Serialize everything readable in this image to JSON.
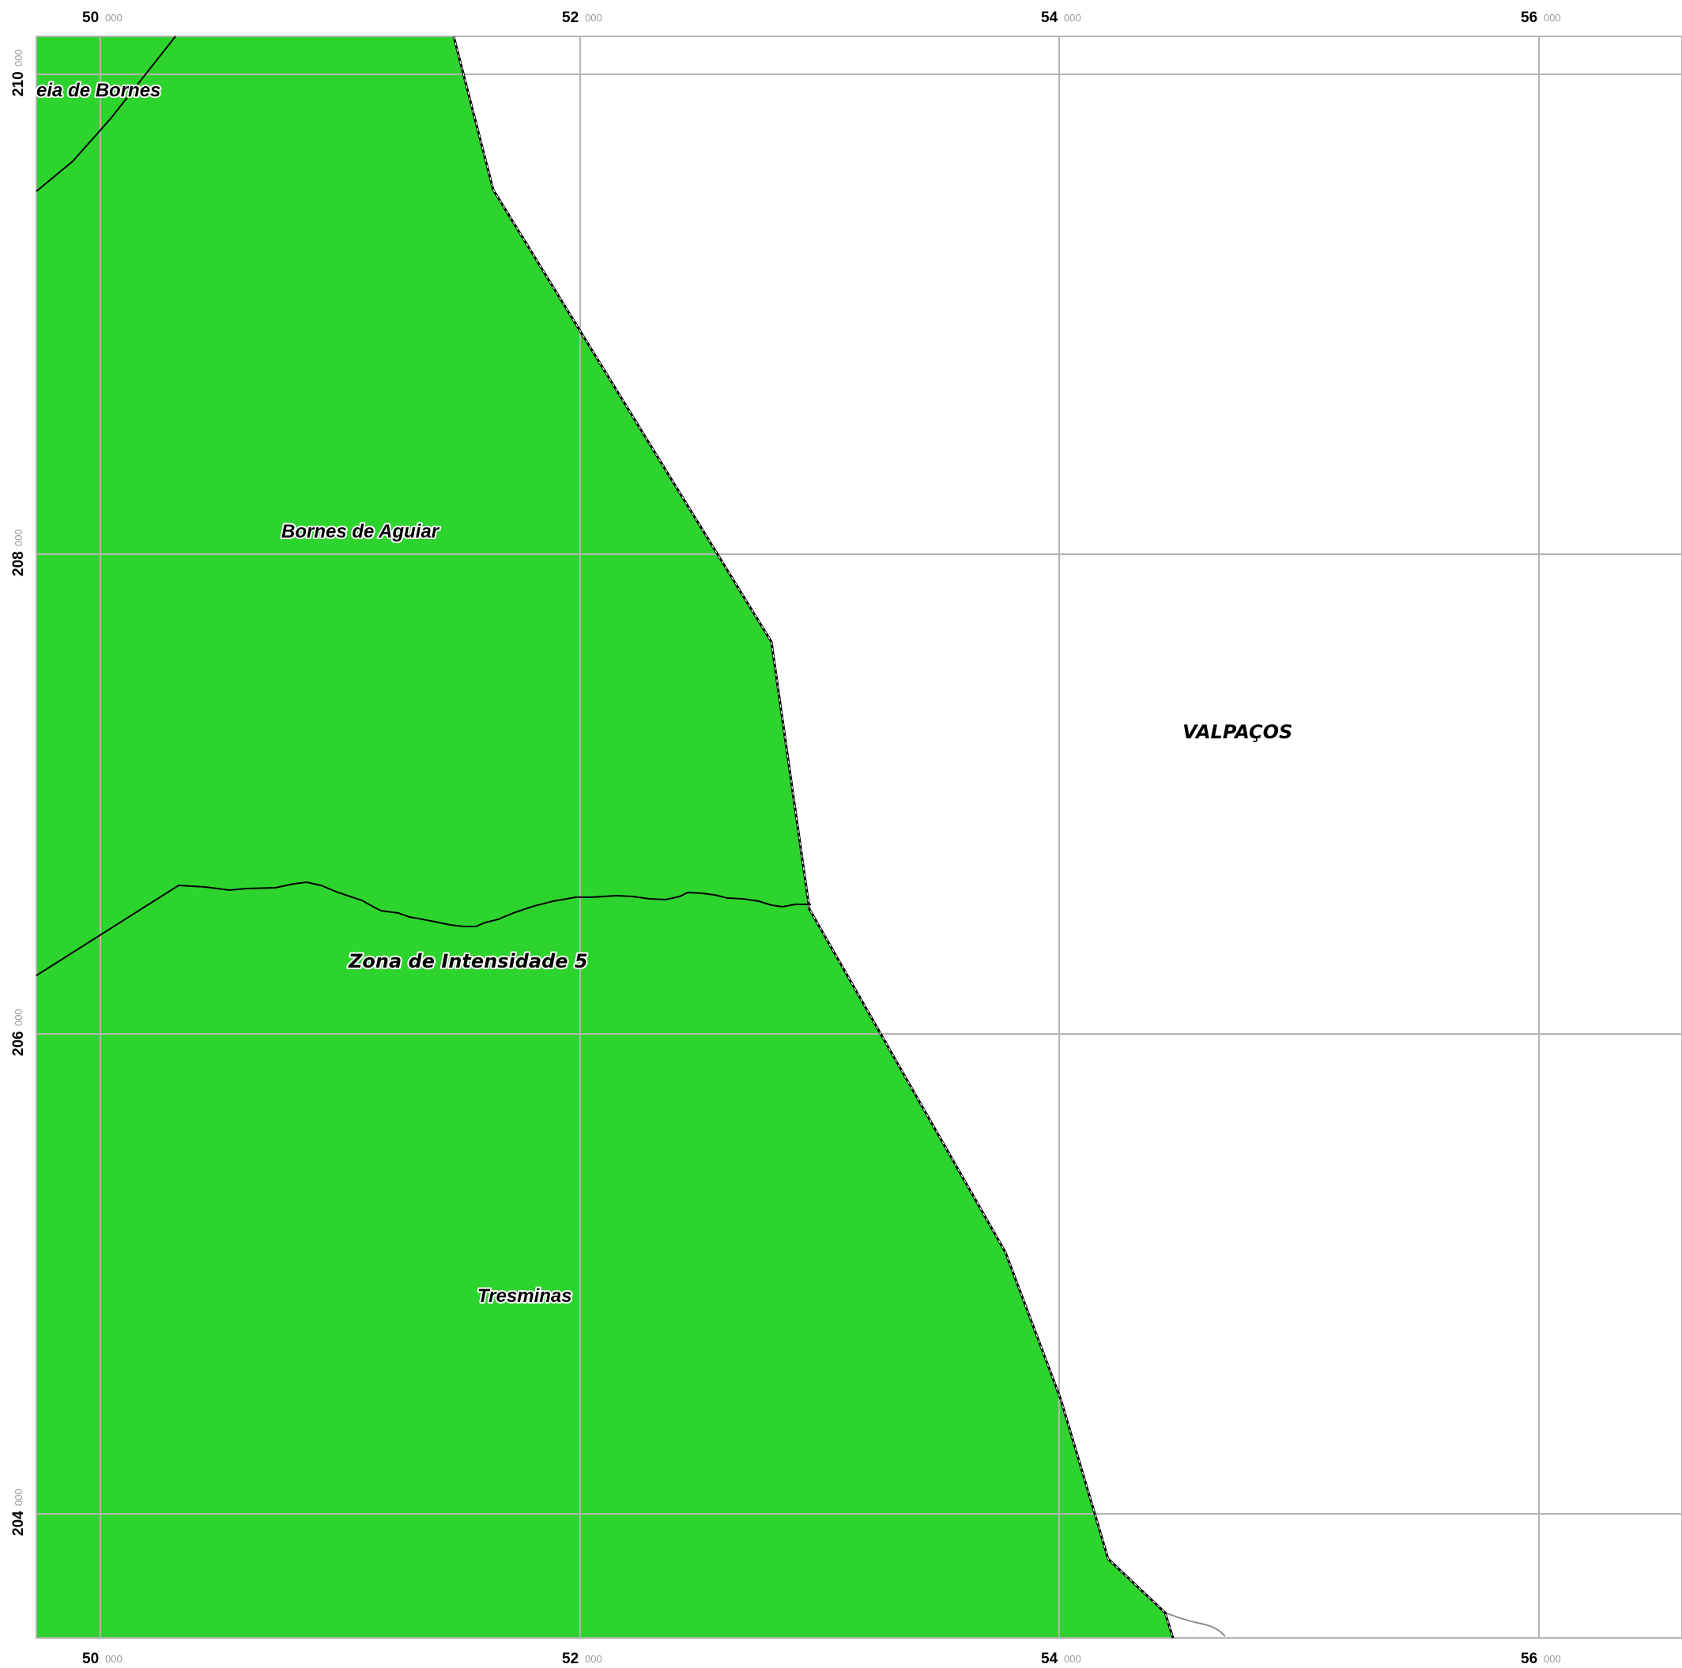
{
  "map": {
    "colors": {
      "zone_fill": "#2ed42e",
      "grid_line": "#b4b4b4",
      "boundary": "#000000",
      "road": "#8c8c8c",
      "background": "#ffffff"
    },
    "grid": {
      "x_major": [
        "50",
        "52",
        "54",
        "56"
      ],
      "y_major": [
        "210",
        "208",
        "206",
        "204"
      ],
      "minor_suffix": "000"
    },
    "labels": {
      "aldeia": "eia de Bornes",
      "bornes": "Bornes de Aguiar",
      "zona": "Zona de Intensidade 5",
      "tresminas": "Tresminas",
      "valpacos": "VALPAÇOS"
    }
  }
}
